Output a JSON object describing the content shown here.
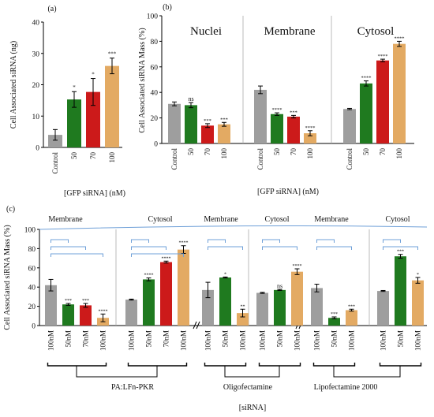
{
  "colors": {
    "control": "#9e9e9e",
    "g50": "#1f7a1f",
    "g70": "#cc1a1a",
    "g100": "#e3aa63",
    "bracket": "#6fa0d8",
    "divider": "#aaaaaa"
  },
  "chart_data": [
    {
      "panel": "(a)",
      "type": "bar",
      "ylabel": "Cell Associated siRNA (ng)",
      "xlabel": "[GFP siRNA] (nM)",
      "ylim": [
        0,
        40
      ],
      "yticks": [
        0,
        10,
        20,
        30,
        40
      ],
      "categories": [
        "Control",
        "50",
        "70",
        "100"
      ],
      "values": [
        4,
        15.3,
        17.7,
        26
      ],
      "errors": [
        1.7,
        2.5,
        4.3,
        2.5
      ],
      "significance": [
        "",
        "*",
        "*",
        "***"
      ]
    },
    {
      "panel": "(b)",
      "type": "bar",
      "ylabel": "Cell Associated siRNA Mass (%)",
      "xlabel": "[GFP siRNA] (nM)",
      "ylim": [
        0,
        100
      ],
      "yticks": [
        0,
        20,
        40,
        60,
        80,
        100
      ],
      "groups": [
        {
          "name": "Nuclei",
          "categories": [
            "Control",
            "50",
            "70",
            "100"
          ],
          "values": [
            31,
            30,
            14,
            15
          ],
          "errors": [
            1.5,
            2,
            1.5,
            1.5
          ],
          "significance": [
            "",
            "ns",
            "***",
            "***"
          ]
        },
        {
          "name": "Membrane",
          "categories": [
            "Control",
            "50",
            "70",
            "100"
          ],
          "values": [
            42,
            23,
            21,
            8
          ],
          "errors": [
            3,
            1,
            1,
            2
          ],
          "significance": [
            "",
            "****",
            "***",
            "****"
          ]
        },
        {
          "name": "Cytosol",
          "categories": [
            "Control",
            "50",
            "70",
            "100"
          ],
          "values": [
            27,
            47,
            65,
            78
          ],
          "errors": [
            0.5,
            2,
            1,
            2
          ],
          "significance": [
            "",
            "****",
            "****",
            "****"
          ]
        }
      ]
    },
    {
      "panel": "(c)",
      "type": "bar",
      "ylabel": "Cell Associated siRNA Mass (%)",
      "xlabel": "[siRNA]",
      "ylim": [
        0,
        100
      ],
      "yticks": [
        0,
        20,
        40,
        60,
        80,
        100
      ],
      "groups": [
        {
          "name": "Membrane",
          "categories": [
            "100nM",
            "50nM",
            "70nM",
            "100nM"
          ],
          "values": [
            42,
            22,
            21,
            8
          ],
          "errors": [
            6,
            1,
            2,
            4
          ],
          "significance": [
            "",
            "***",
            "***",
            "****"
          ]
        },
        {
          "name": "Cytosol",
          "categories": [
            "100nM",
            "50nM",
            "70nM",
            "100nM"
          ],
          "values": [
            27,
            48,
            66,
            79
          ],
          "errors": [
            0.5,
            1.5,
            1,
            4
          ],
          "significance": [
            "",
            "****",
            "****",
            "****"
          ]
        },
        {
          "name": "Membrane",
          "categories": [
            "100nM",
            "50nM",
            "100nM"
          ],
          "values": [
            37,
            50,
            13
          ],
          "errors": [
            8,
            0.5,
            4
          ],
          "significance": [
            "",
            "*",
            "**"
          ]
        },
        {
          "name": "Cytosol",
          "categories": [
            "100nM",
            "50nM",
            "100nM"
          ],
          "values": [
            34,
            37,
            56
          ],
          "errors": [
            0.5,
            0.5,
            3
          ],
          "significance": [
            "",
            "ns",
            "****"
          ]
        },
        {
          "name": "Membrane",
          "categories": [
            "100nM",
            "50nM",
            "100nM"
          ],
          "values": [
            39,
            8,
            16
          ],
          "errors": [
            4,
            1,
            1
          ],
          "significance": [
            "",
            "***",
            "***"
          ]
        },
        {
          "name": "Cytosol",
          "categories": [
            "100nM",
            "50nM",
            "100nM"
          ],
          "values": [
            36,
            72,
            47
          ],
          "errors": [
            0.5,
            2,
            3
          ],
          "significance": [
            "",
            "***",
            "*"
          ]
        }
      ],
      "reagents": [
        "PA:LFn-PKR",
        "Oligofectamine",
        "Lipofectamine 2000"
      ]
    }
  ]
}
